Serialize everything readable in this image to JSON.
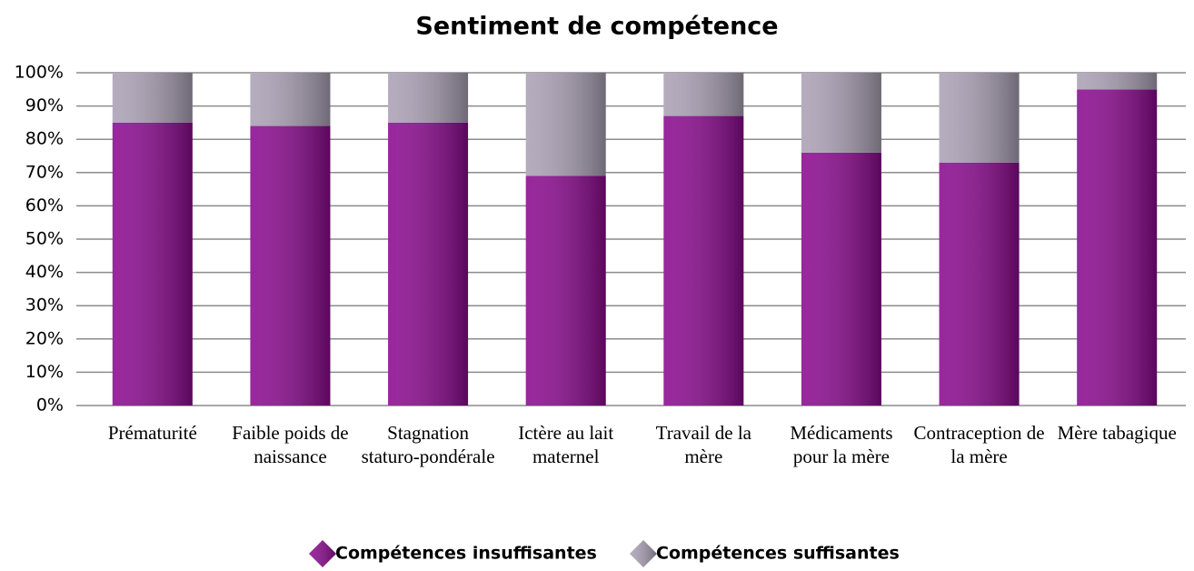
{
  "chart_data": {
    "type": "stacked_bar",
    "title": "Sentiment de compétence",
    "categories": [
      "Prématurité",
      "Faible poids de naissance",
      "Stagnation staturo-pondérale",
      "Ictère au lait maternel",
      "Travail de la mère",
      "Médicaments pour la mère",
      "Contraception de la mère",
      "Mère tabagique"
    ],
    "series": [
      {
        "name": "Compétences insuffisantes",
        "color": "#8b0a8f",
        "values": [
          85,
          84,
          85,
          69,
          87,
          76,
          73,
          95
        ]
      },
      {
        "name": "Compétences suffisantes",
        "color": "#aba1b5",
        "values": [
          15,
          16,
          15,
          31,
          13,
          24,
          27,
          5
        ]
      }
    ],
    "ylim": [
      0,
      100
    ],
    "yticks": [
      {
        "value": 0,
        "label": "0%"
      },
      {
        "value": 10,
        "label": "10%"
      },
      {
        "value": 20,
        "label": "20%"
      },
      {
        "value": 30,
        "label": "30%"
      },
      {
        "value": 40,
        "label": "40%"
      },
      {
        "value": 50,
        "label": "50%"
      },
      {
        "value": 60,
        "label": "60%"
      },
      {
        "value": 70,
        "label": "70%"
      },
      {
        "value": 80,
        "label": "80%"
      },
      {
        "value": 90,
        "label": "90%"
      },
      {
        "value": 100,
        "label": "100%"
      }
    ],
    "grid": true,
    "legend": "bottom"
  }
}
